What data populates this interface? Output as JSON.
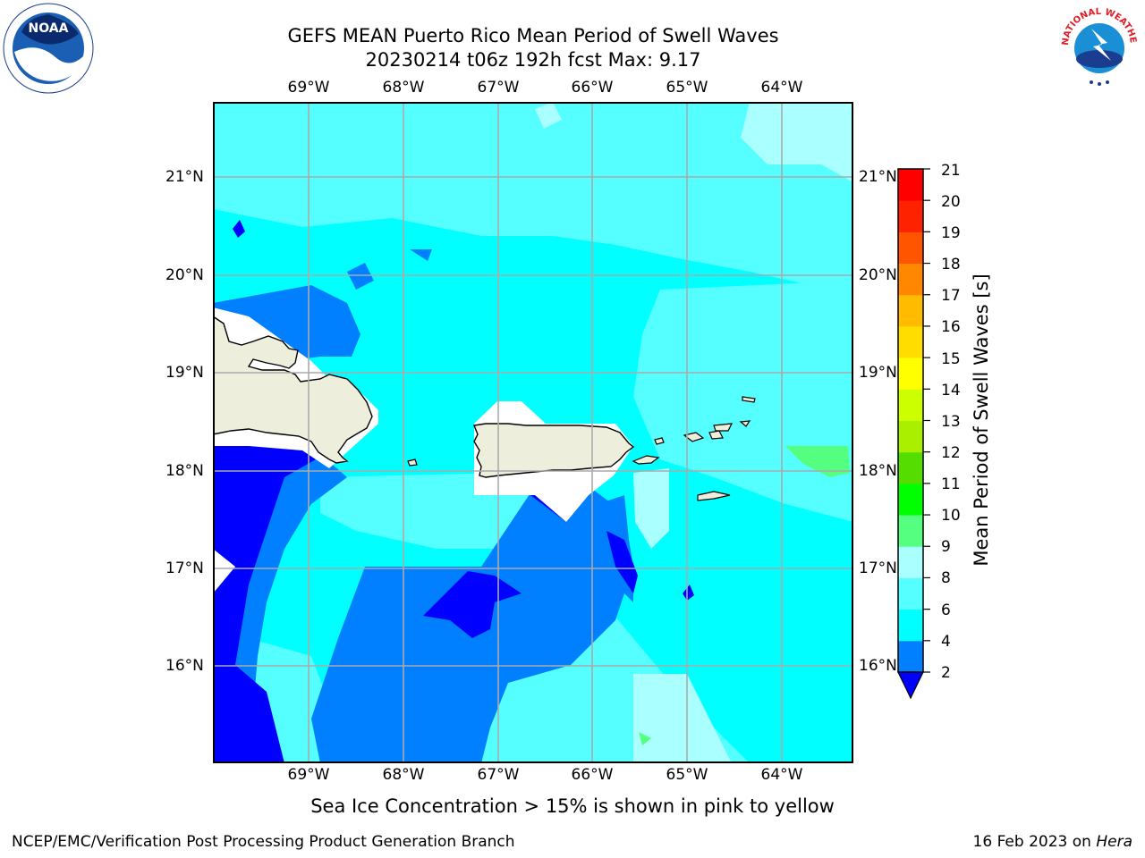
{
  "title_line1": "GEFS MEAN Puerto Rico Mean Period of Swell Waves",
  "title_line2": "20230214 t06z 192h fcst   Max: 9.17",
  "lon_labels": [
    "69°W",
    "68°W",
    "67°W",
    "66°W",
    "65°W",
    "64°W"
  ],
  "lat_labels": [
    "21°N",
    "20°N",
    "19°N",
    "18°N",
    "17°N",
    "16°N"
  ],
  "colorbar": {
    "title": "Mean Period of Swell Waves [s]",
    "ticks": [
      "2",
      "4",
      "6",
      "8",
      "9",
      "10",
      "11",
      "12",
      "13",
      "14",
      "15",
      "16",
      "17",
      "18",
      "19",
      "20",
      "21"
    ],
    "colors": [
      "#0000ff",
      "#0080ff",
      "#00ffff",
      "#55ffff",
      "#aaffff",
      "#55ff80",
      "#00ff00",
      "#55dd00",
      "#aaee00",
      "#ccff00",
      "#ffff00",
      "#ffdd00",
      "#ffbb00",
      "#ff8800",
      "#ff5500",
      "#ff2200",
      "#ff0000"
    ]
  },
  "footnote": "Sea Ice Concentration > 15% is shown in pink to yellow",
  "credit": "NCEP/EMC/Verification Post Processing Product Generation Branch",
  "date": {
    "prefix": "16 Feb 2023 on ",
    "machine": "Hera"
  },
  "logos": {
    "noaa_text": "NOAA",
    "nws_text": "NATIONAL WEATHER SERVICE"
  }
}
